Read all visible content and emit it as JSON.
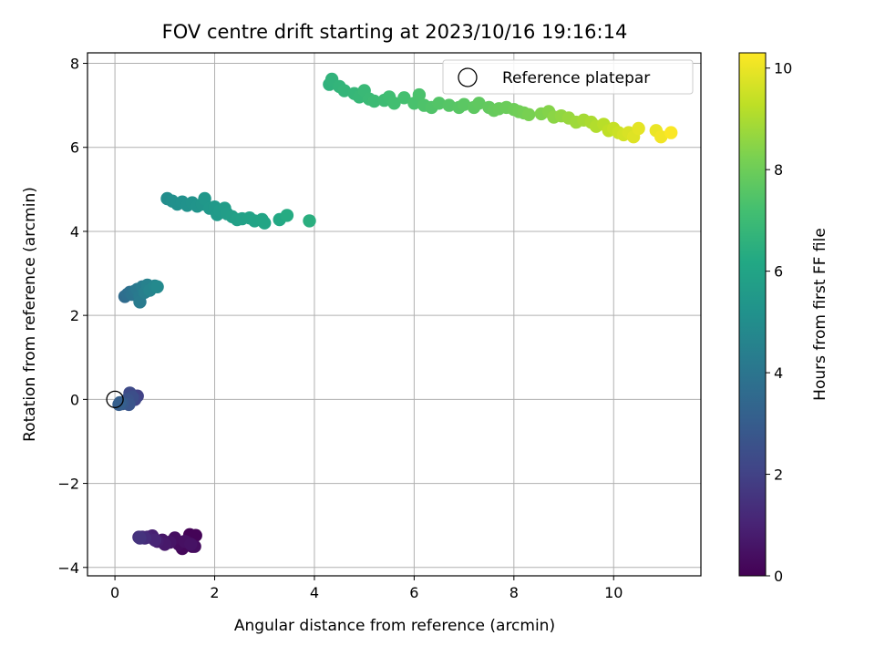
{
  "chart_data": {
    "type": "scatter",
    "title": "FOV centre drift starting at 2023/10/16 19:16:14",
    "xlabel": "Angular distance from reference (arcmin)",
    "ylabel": "Rotation from reference (arcmin)",
    "xlim": [
      -0.55,
      11.75
    ],
    "ylim": [
      -4.2,
      8.25
    ],
    "xticks": [
      0,
      2,
      4,
      6,
      8,
      10
    ],
    "yticks": [
      -4,
      -2,
      0,
      2,
      4,
      6,
      8
    ],
    "xtick_labels": [
      "0",
      "2",
      "4",
      "6",
      "8",
      "10"
    ],
    "ytick_labels": [
      "−4",
      "−2",
      "0",
      "2",
      "4",
      "6",
      "8"
    ],
    "grid": true,
    "colormap": "viridis",
    "colorbar": {
      "label": "Hours from first FF file",
      "range": [
        0,
        10.3
      ],
      "ticks": [
        0,
        2,
        4,
        6,
        8,
        10
      ],
      "tick_labels": [
        "0",
        "2",
        "4",
        "6",
        "8",
        "10"
      ]
    },
    "legend": {
      "position": "top-right",
      "entries": [
        {
          "label": "Reference platepar",
          "marker": "open-circle"
        }
      ],
      "reference_point": [
        0,
        0
      ]
    },
    "point_columns": [
      "x",
      "y",
      "hours"
    ],
    "points": [
      [
        1.5,
        -3.22,
        0.05
      ],
      [
        1.62,
        -3.24,
        0.1
      ],
      [
        1.55,
        -3.5,
        0.15
      ],
      [
        1.35,
        -3.55,
        0.2
      ],
      [
        1.45,
        -3.4,
        0.25
      ],
      [
        1.28,
        -3.45,
        0.3
      ],
      [
        1.6,
        -3.5,
        0.35
      ],
      [
        1.2,
        -3.3,
        0.4
      ],
      [
        1.4,
        -3.38,
        0.45
      ],
      [
        1.52,
        -3.45,
        0.5
      ],
      [
        1.1,
        -3.4,
        0.55
      ],
      [
        0.95,
        -3.35,
        0.6
      ],
      [
        1.0,
        -3.45,
        0.7
      ],
      [
        0.85,
        -3.38,
        0.8
      ],
      [
        0.75,
        -3.25,
        0.9
      ],
      [
        0.65,
        -3.28,
        1.0
      ],
      [
        0.8,
        -3.35,
        1.1
      ],
      [
        0.55,
        -3.28,
        1.2
      ],
      [
        0.6,
        -3.3,
        1.3
      ],
      [
        0.48,
        -3.28,
        1.4
      ],
      [
        0.5,
        -3.3,
        1.5
      ],
      [
        0.45,
        0.08,
        2.0
      ],
      [
        0.4,
        0.0,
        2.15
      ],
      [
        0.3,
        0.15,
        2.3
      ],
      [
        0.35,
        0.05,
        2.45
      ],
      [
        0.25,
        0.0,
        2.6
      ],
      [
        0.28,
        -0.12,
        2.7
      ],
      [
        0.15,
        -0.1,
        2.85
      ],
      [
        0.08,
        -0.12,
        3.0
      ],
      [
        0.1,
        -0.08,
        3.1
      ],
      [
        0.2,
        2.45,
        3.6
      ],
      [
        0.25,
        2.5,
        3.7
      ],
      [
        0.3,
        2.55,
        3.8
      ],
      [
        0.35,
        2.5,
        3.9
      ],
      [
        0.4,
        2.58,
        4.0
      ],
      [
        0.45,
        2.62,
        4.1
      ],
      [
        0.5,
        2.45,
        4.2
      ],
      [
        0.5,
        2.32,
        4.25
      ],
      [
        0.55,
        2.68,
        4.3
      ],
      [
        0.6,
        2.55,
        4.4
      ],
      [
        0.65,
        2.72,
        4.5
      ],
      [
        0.7,
        2.6,
        4.6
      ],
      [
        0.8,
        2.7,
        4.7
      ],
      [
        0.85,
        2.68,
        4.8
      ],
      [
        1.05,
        4.78,
        5.0
      ],
      [
        1.15,
        4.72,
        5.05
      ],
      [
        1.25,
        4.65,
        5.1
      ],
      [
        1.35,
        4.7,
        5.15
      ],
      [
        1.45,
        4.62,
        5.2
      ],
      [
        1.55,
        4.68,
        5.25
      ],
      [
        1.65,
        4.6,
        5.3
      ],
      [
        1.75,
        4.65,
        5.35
      ],
      [
        1.8,
        4.78,
        5.4
      ],
      [
        1.9,
        4.55,
        5.45
      ],
      [
        2.0,
        4.58,
        5.5
      ],
      [
        2.05,
        4.4,
        5.55
      ],
      [
        2.1,
        4.5,
        5.6
      ],
      [
        2.2,
        4.55,
        5.65
      ],
      [
        2.25,
        4.42,
        5.7
      ],
      [
        2.35,
        4.35,
        5.75
      ],
      [
        2.45,
        4.28,
        5.8
      ],
      [
        2.55,
        4.3,
        5.85
      ],
      [
        2.7,
        4.32,
        5.9
      ],
      [
        2.8,
        4.25,
        5.95
      ],
      [
        2.95,
        4.28,
        6.0
      ],
      [
        3.0,
        4.2,
        6.05
      ],
      [
        3.3,
        4.28,
        6.2
      ],
      [
        3.45,
        4.38,
        6.3
      ],
      [
        3.9,
        4.25,
        6.45
      ],
      [
        4.3,
        7.5,
        6.6
      ],
      [
        4.35,
        7.62,
        6.65
      ],
      [
        4.5,
        7.45,
        6.7
      ],
      [
        4.6,
        7.35,
        6.75
      ],
      [
        4.8,
        7.28,
        6.8
      ],
      [
        4.9,
        7.2,
        6.85
      ],
      [
        5.0,
        7.35,
        6.9
      ],
      [
        5.1,
        7.15,
        6.95
      ],
      [
        5.2,
        7.1,
        7.0
      ],
      [
        5.4,
        7.12,
        7.05
      ],
      [
        5.5,
        7.2,
        7.1
      ],
      [
        5.6,
        7.05,
        7.15
      ],
      [
        5.8,
        7.18,
        7.2
      ],
      [
        6.0,
        7.05,
        7.3
      ],
      [
        6.1,
        7.25,
        7.35
      ],
      [
        6.2,
        7.0,
        7.4
      ],
      [
        6.35,
        6.95,
        7.45
      ],
      [
        6.5,
        7.05,
        7.5
      ],
      [
        6.7,
        7.0,
        7.55
      ],
      [
        6.9,
        6.95,
        7.6
      ],
      [
        7.0,
        7.02,
        7.65
      ],
      [
        7.2,
        6.95,
        7.7
      ],
      [
        7.3,
        7.05,
        7.75
      ],
      [
        7.5,
        6.95,
        7.8
      ],
      [
        7.6,
        6.88,
        7.85
      ],
      [
        7.7,
        6.92,
        7.9
      ],
      [
        7.85,
        6.95,
        7.95
      ],
      [
        8.0,
        6.9,
        8.0
      ],
      [
        8.1,
        6.85,
        8.05
      ],
      [
        8.2,
        6.82,
        8.1
      ],
      [
        8.3,
        6.78,
        8.2
      ],
      [
        8.55,
        6.8,
        8.3
      ],
      [
        8.7,
        6.85,
        8.4
      ],
      [
        8.8,
        6.72,
        8.5
      ],
      [
        8.95,
        6.75,
        8.6
      ],
      [
        9.1,
        6.7,
        8.7
      ],
      [
        9.25,
        6.6,
        8.8
      ],
      [
        9.4,
        6.65,
        8.9
      ],
      [
        9.55,
        6.6,
        9.0
      ],
      [
        9.65,
        6.5,
        9.1
      ],
      [
        9.8,
        6.55,
        9.2
      ],
      [
        9.9,
        6.4,
        9.3
      ],
      [
        10.0,
        6.45,
        9.4
      ],
      [
        10.1,
        6.35,
        9.5
      ],
      [
        10.2,
        6.3,
        9.6
      ],
      [
        10.3,
        6.35,
        9.7
      ],
      [
        10.4,
        6.25,
        9.8
      ],
      [
        10.5,
        6.45,
        9.9
      ],
      [
        10.85,
        6.4,
        10.0
      ],
      [
        10.95,
        6.25,
        10.1
      ],
      [
        11.15,
        6.35,
        10.25
      ]
    ]
  }
}
